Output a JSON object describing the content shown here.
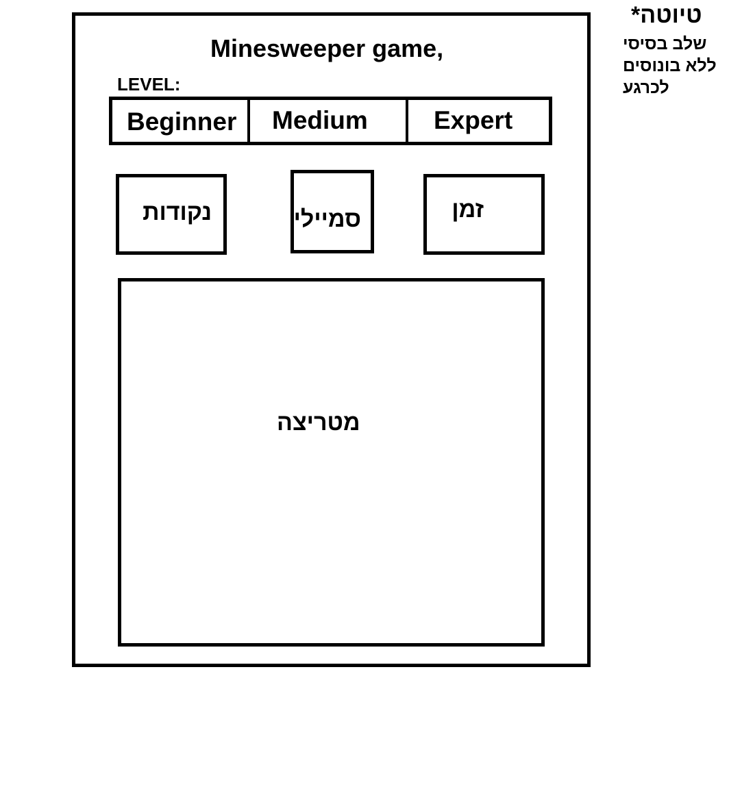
{
  "title": "Minesweeper game,",
  "level": {
    "label": "LEVEL:",
    "options": [
      "Beginner",
      "Medium",
      "Expert"
    ]
  },
  "status": {
    "points": "נקודות",
    "smiley": "סמיילי",
    "time": "זמן"
  },
  "board": {
    "label": "מטריצה"
  },
  "note": {
    "title": "טיוטה*",
    "lines": [
      "שלב בסיסי",
      "ללא בונוסים",
      "לכרגע"
    ]
  }
}
